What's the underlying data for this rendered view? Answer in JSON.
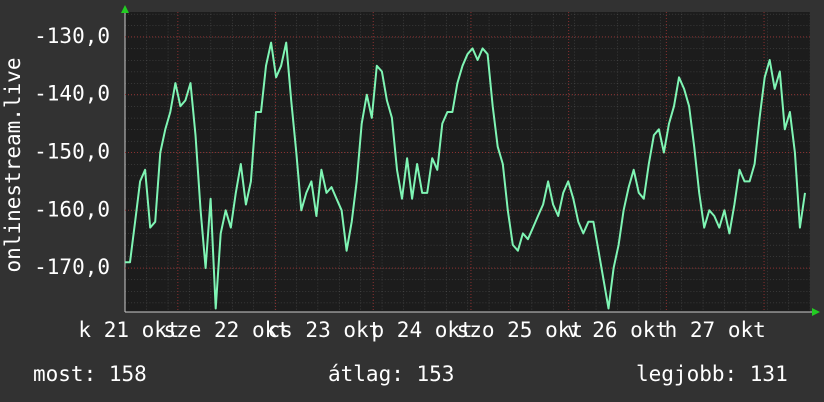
{
  "chart_data": {
    "type": "line",
    "y_label": "onlinestream.live",
    "x_labels": [
      "k 21 okt",
      "sze 22 okt",
      "cs 23 okt",
      "p 24 okt",
      "szo 25 okt",
      "v 26 okt",
      "h 27 okt"
    ],
    "series": [
      {
        "color": "#7ff5b4",
        "values": [
          -169,
          -169,
          -162,
          -155,
          -153,
          -163,
          -162,
          -150,
          -146,
          -143,
          -138,
          -142,
          -141,
          -138,
          -147,
          -160,
          -170,
          -158,
          -177,
          -164,
          -160,
          -163,
          -157,
          -152,
          -159,
          -155,
          -143,
          -143,
          -135,
          -131,
          -137,
          -135,
          -131,
          -141,
          -150,
          -160,
          -157,
          -155,
          -161,
          -153,
          -157,
          -156,
          -158,
          -160,
          -167,
          -162,
          -155,
          -145,
          -140,
          -144,
          -135,
          -136,
          -141,
          -144,
          -153,
          -158,
          -151,
          -158,
          -152,
          -157,
          -157,
          -151,
          -153,
          -145,
          -143,
          -143,
          -138,
          -135,
          -133,
          -132,
          -134,
          -132,
          -133,
          -142,
          -149,
          -152,
          -160,
          -166,
          -167,
          -164,
          -165,
          -163,
          -161,
          -159,
          -155,
          -159,
          -161,
          -157,
          -155,
          -158,
          -162,
          -164,
          -162,
          -162,
          -167,
          -172,
          -177,
          -170,
          -166,
          -160,
          -156,
          -153,
          -157,
          -158,
          -152,
          -147,
          -146,
          -150,
          -145,
          -142,
          -137,
          -139,
          -142,
          -149,
          -157,
          -163,
          -160,
          -161,
          -163,
          -160,
          -164,
          -159,
          -153,
          -155,
          -155,
          -152,
          -144,
          -137,
          -134,
          -139,
          -136,
          -146,
          -143,
          -150,
          -163,
          -157
        ]
      }
    ],
    "ylim": [
      -177.6,
      -125.7
    ],
    "yticks": [
      {
        "value": -170,
        "label": "-170,0"
      },
      {
        "value": -160,
        "label": "-160,0"
      },
      {
        "value": -150,
        "label": "-150,0"
      },
      {
        "value": -140,
        "label": "-140,0"
      },
      {
        "value": -130,
        "label": "-130,0"
      }
    ],
    "grid": true,
    "footer": [
      "most: 158",
      "átlag: 153",
      "legjobb: 131"
    ]
  }
}
